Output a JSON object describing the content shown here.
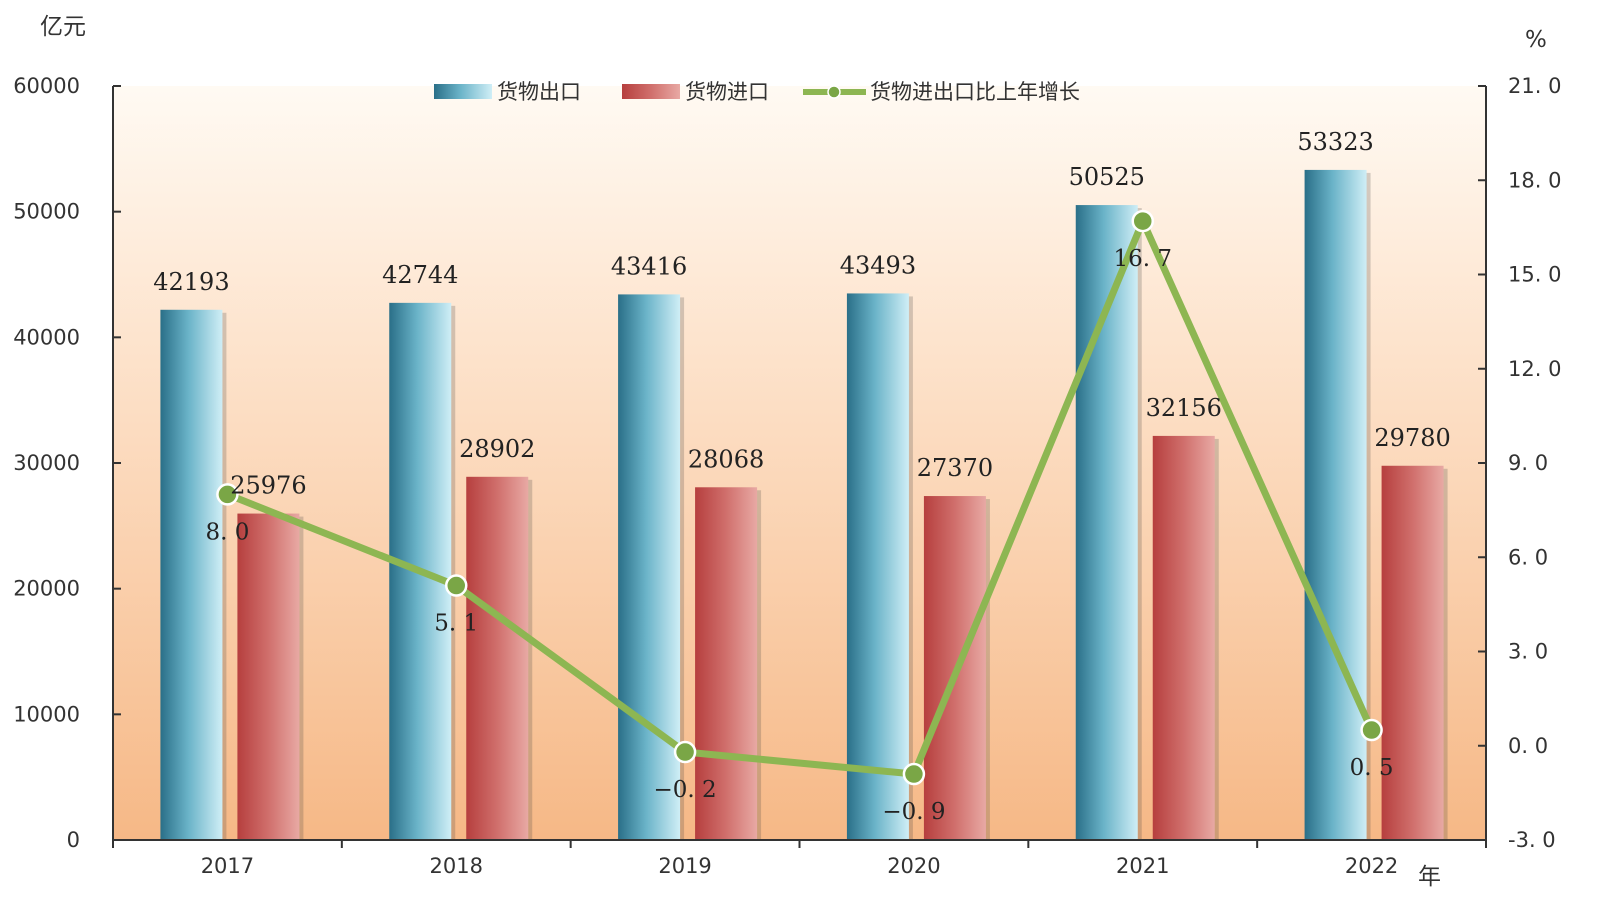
{
  "chart_data": {
    "type": "bar",
    "categories": [
      "2017",
      "2018",
      "2019",
      "2020",
      "2021",
      "2022"
    ],
    "series": [
      {
        "name": "货物出口",
        "type": "bar",
        "axis": "left",
        "values": [
          42193,
          42744,
          43416,
          43493,
          50525,
          53323
        ],
        "labels": [
          "42193",
          "42744",
          "43416",
          "43493",
          "50525",
          "53323"
        ],
        "color": "#3d8aa3"
      },
      {
        "name": "货物进口",
        "type": "bar",
        "axis": "left",
        "values": [
          25976,
          28902,
          28068,
          27370,
          32156,
          29780
        ],
        "labels": [
          "25976",
          "28902",
          "28068",
          "27370",
          "32156",
          "29780"
        ],
        "color": "#c65553"
      },
      {
        "name": "货物进出口比上年增长",
        "type": "line",
        "axis": "right",
        "values": [
          8.0,
          5.1,
          -0.2,
          -0.9,
          16.7,
          0.5
        ],
        "labels": [
          "8. 0",
          "5. 1",
          "−0. 2",
          "−0. 9",
          "16. 7",
          "0. 5"
        ],
        "color": "#8db652"
      }
    ],
    "y_left": {
      "unit": "亿元",
      "range": [
        0,
        60000
      ],
      "ticks": [
        0,
        10000,
        20000,
        30000,
        40000,
        50000,
        60000
      ],
      "tick_labels": [
        "0",
        "10000",
        "20000",
        "30000",
        "40000",
        "50000",
        "60000"
      ]
    },
    "y_right": {
      "unit": "%",
      "range": [
        -3.0,
        21.0
      ],
      "ticks": [
        -3,
        0,
        3,
        6,
        9,
        12,
        15,
        18,
        21
      ],
      "tick_labels": [
        "-3. 0",
        "0. 0",
        "3. 0",
        "6. 0",
        "9. 0",
        "12. 0",
        "15. 0",
        "18. 0",
        "21. 0"
      ]
    },
    "x_unit": "年",
    "legend_position": "top-center",
    "grid": false
  }
}
